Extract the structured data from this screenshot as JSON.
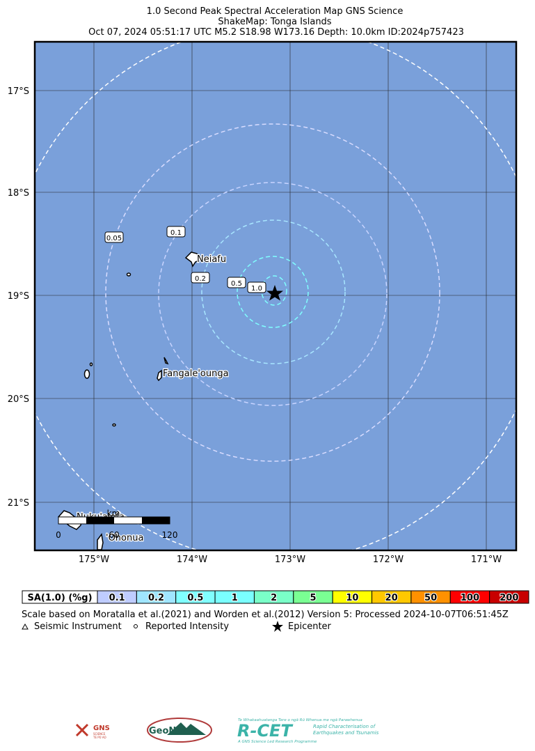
{
  "header": {
    "lines": [
      "1.0 Second Peak Spectral Acceleration Map GNS Science",
      "ShakeMap: Tonga Islands",
      "Oct 07, 2024 05:51:17 UTC M5.2 S18.98 W173.16 Depth: 10.0km ID:2024p757423"
    ]
  },
  "map": {
    "lat_labels": [
      "17°S",
      "18°S",
      "19°S",
      "20°S",
      "21°S"
    ],
    "lon_labels": [
      "175°W",
      "174°W",
      "173°W",
      "172°W",
      "171°W"
    ],
    "contour_labels": [
      "0.05",
      "0.1",
      "0.2",
      "0.5",
      "1.0"
    ],
    "places": [
      "Neiafu",
      "Fangale'ounga",
      "Nuku'alofa",
      "'Ohonua"
    ],
    "scale_bar": {
      "unit": "km",
      "labels": [
        "0",
        "60",
        "120"
      ]
    },
    "water_color": "#7aa0da"
  },
  "legend": {
    "title": "SA(1.0) (%g)",
    "bins": [
      {
        "label": "0.1",
        "color": "#bfccff"
      },
      {
        "label": "0.2",
        "color": "#a0e6ff"
      },
      {
        "label": "0.5",
        "color": "#80ffff"
      },
      {
        "label": "1",
        "color": "#7affff"
      },
      {
        "label": "2",
        "color": "#7affc8"
      },
      {
        "label": "5",
        "color": "#7aff93"
      },
      {
        "label": "10",
        "color": "#ffff00"
      },
      {
        "label": "20",
        "color": "#ffc800"
      },
      {
        "label": "50",
        "color": "#ff9100"
      },
      {
        "label": "100",
        "color": "#ff0000"
      },
      {
        "label": "200",
        "color": "#c80000"
      }
    ]
  },
  "footer": {
    "note": "Scale based on Moratalla et al.(2021) and Worden et al.(2012)   Version 5: Processed 2024-10-07T06:51:45Z",
    "symbols": [
      "Seismic Instrument",
      "Reported Intensity",
      "Epicenter"
    ]
  },
  "logos": {
    "gns": [
      "GNS",
      "SCIENCE",
      "TE PŪ AO"
    ],
    "geonet": "GeoNet",
    "rcet": [
      "Te Whakaahuatanga Tere o ngā Rū Whenua me ngā Parawhenua",
      "R-CET",
      "Rapid Characterisation of",
      "Earthquakes and Tsunamis",
      "A GNS Science Led Research Programme"
    ]
  }
}
